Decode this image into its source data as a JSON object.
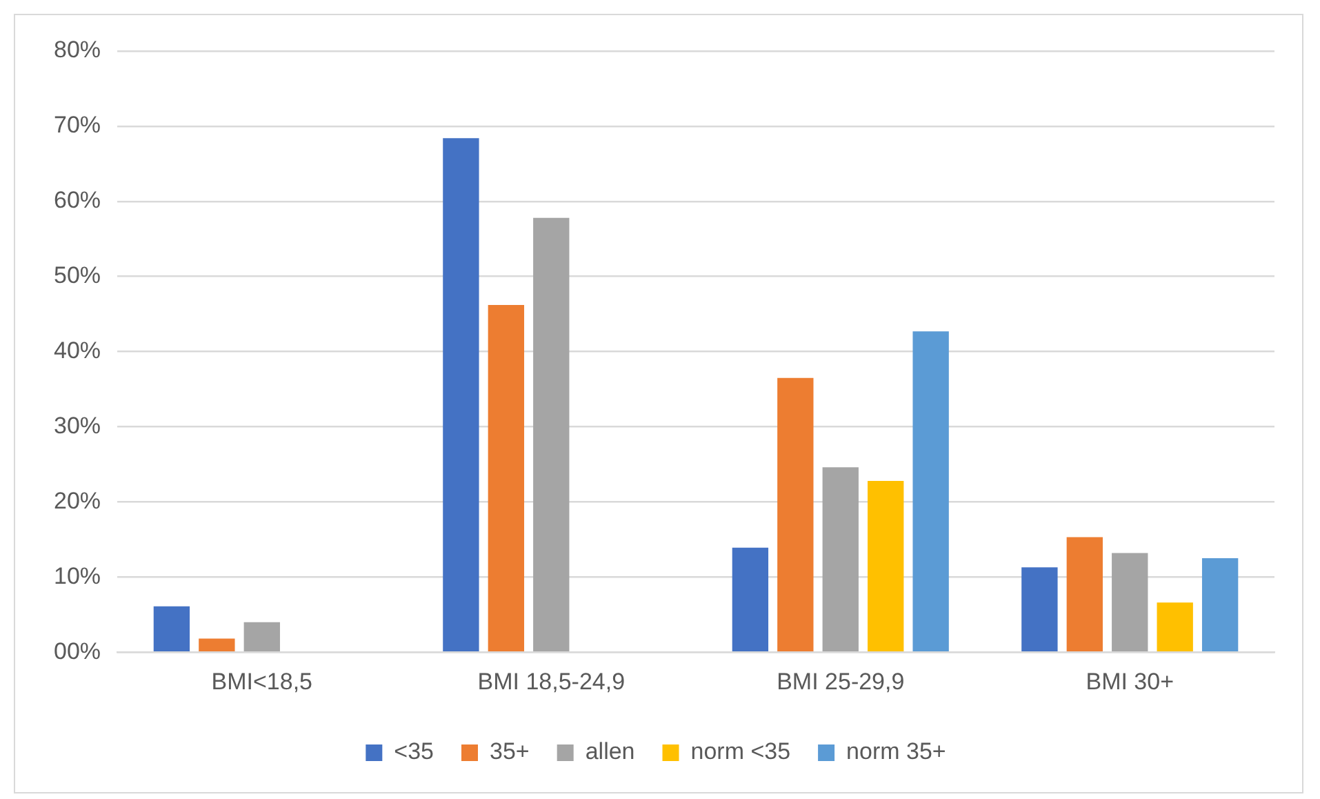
{
  "chart_data": {
    "type": "bar",
    "categories": [
      "BMI<18,5",
      "BMI 18,5-24,9",
      "BMI 25-29,9",
      "BMI 30+"
    ],
    "series": [
      {
        "name": "<35",
        "color": "#4472c4",
        "values": [
          6.1,
          68.4,
          13.9,
          11.3
        ]
      },
      {
        "name": "35+",
        "color": "#ed7d31",
        "values": [
          1.8,
          46.2,
          36.5,
          15.3
        ]
      },
      {
        "name": "allen",
        "color": "#a5a5a5",
        "values": [
          4.0,
          57.8,
          24.6,
          13.2
        ]
      },
      {
        "name": "norm <35",
        "color": "#ffc000",
        "values": [
          null,
          null,
          22.8,
          6.6
        ]
      },
      {
        "name": "norm 35+",
        "color": "#5b9bd5",
        "values": [
          null,
          null,
          42.7,
          12.5
        ]
      }
    ],
    "ylim": [
      0,
      80
    ],
    "yticks": [
      {
        "value": 0,
        "label": "00%"
      },
      {
        "value": 10,
        "label": "10%"
      },
      {
        "value": 20,
        "label": "20%"
      },
      {
        "value": 30,
        "label": "30%"
      },
      {
        "value": 40,
        "label": "40%"
      },
      {
        "value": 50,
        "label": "50%"
      },
      {
        "value": 60,
        "label": "60%"
      },
      {
        "value": 70,
        "label": "70%"
      },
      {
        "value": 80,
        "label": "80%"
      }
    ],
    "grid": "y",
    "legend": "bottom"
  }
}
